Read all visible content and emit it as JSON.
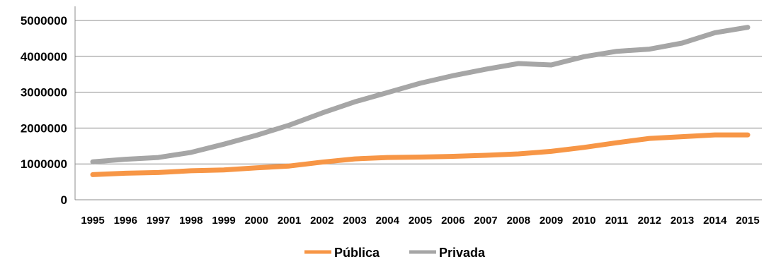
{
  "chart_data": {
    "type": "line",
    "title": "",
    "xlabel": "",
    "ylabel": "",
    "x": [
      "1995",
      "1996",
      "1997",
      "1998",
      "1999",
      "2000",
      "2001",
      "2002",
      "2003",
      "2004",
      "2005",
      "2006",
      "2007",
      "2008",
      "2009",
      "2010",
      "2011",
      "2012",
      "2013",
      "2014",
      "2015"
    ],
    "ylim": [
      0,
      5000000
    ],
    "yticks": [
      "0",
      "1000000",
      "2000000",
      "3000000",
      "4000000",
      "5000000"
    ],
    "grid": "horizontal",
    "legend_position": "bottom",
    "series": [
      {
        "name": "Pública",
        "color": "#F79646",
        "values": [
          700000,
          740000,
          760000,
          810000,
          830000,
          890000,
          940000,
          1050000,
          1140000,
          1180000,
          1190000,
          1210000,
          1240000,
          1280000,
          1350000,
          1460000,
          1590000,
          1710000,
          1760000,
          1810000,
          1810000
        ]
      },
      {
        "name": "Privada",
        "color": "#A6A6A6",
        "values": [
          1060000,
          1130000,
          1180000,
          1320000,
          1550000,
          1800000,
          2080000,
          2420000,
          2730000,
          2990000,
          3250000,
          3460000,
          3640000,
          3800000,
          3760000,
          3990000,
          4140000,
          4200000,
          4370000,
          4660000,
          4810000
        ]
      }
    ]
  }
}
